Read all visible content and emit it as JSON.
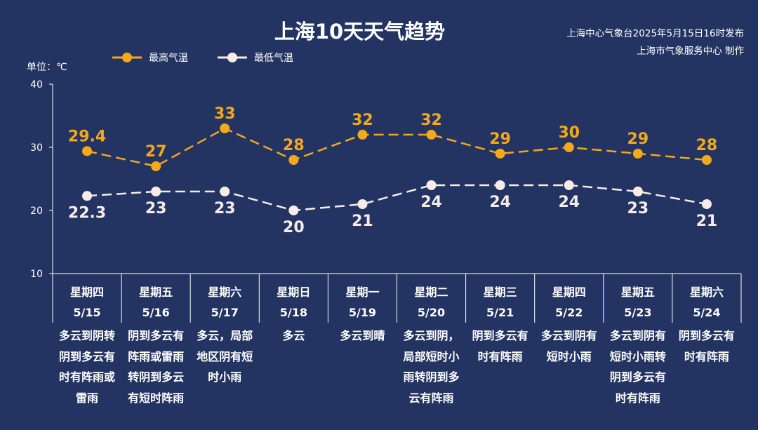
{
  "title": "上海10天天气趋势",
  "publisher": {
    "line1": "上海中心气象台2025年5月15日16时发布",
    "line2": "上海市气象服务中心 制作"
  },
  "chart_data": {
    "type": "line",
    "unit_label": "单位：℃",
    "ylim": [
      10,
      40
    ],
    "yticks": [
      10,
      20,
      30,
      40
    ],
    "grid": false,
    "legend_placement": "top-left",
    "weekdays": [
      "星期四",
      "星期五",
      "星期六",
      "星期日",
      "星期一",
      "星期二",
      "星期三",
      "星期四",
      "星期五",
      "星期六"
    ],
    "dates": [
      "5/15",
      "5/16",
      "5/17",
      "5/18",
      "5/19",
      "5/20",
      "5/21",
      "5/22",
      "5/23",
      "5/24"
    ],
    "weather": [
      "多云到阴转阴到多云有时有阵雨或雷雨",
      "阴到多云有阵雨或雷雨转阴到多云有短时阵雨",
      "多云，局部地区阴有短时小雨",
      "多云",
      "多云到晴",
      "多云到阴，局部短时小雨转阴到多云有阵雨",
      "阴到多云有时有阵雨",
      "多云到阴有短时小雨",
      "多云到阴有短时小雨转阴到多云有时有阵雨",
      "阴到多云有时有阵雨"
    ],
    "series": [
      {
        "name": "最高气温",
        "color": "#f5a81c",
        "values": [
          29.4,
          27,
          33,
          28,
          32,
          32,
          29,
          30,
          29,
          28
        ],
        "labels": [
          "29.4",
          "27",
          "33",
          "28",
          "32",
          "32",
          "29",
          "30",
          "29",
          "28"
        ]
      },
      {
        "name": "最低气温",
        "color": "#f7ece8",
        "values": [
          22.3,
          23,
          23,
          20,
          21,
          24,
          24,
          24,
          23,
          21
        ],
        "labels": [
          "22.3",
          "23",
          "23",
          "20",
          "21",
          "24",
          "24",
          "24",
          "23",
          "21"
        ]
      }
    ]
  }
}
